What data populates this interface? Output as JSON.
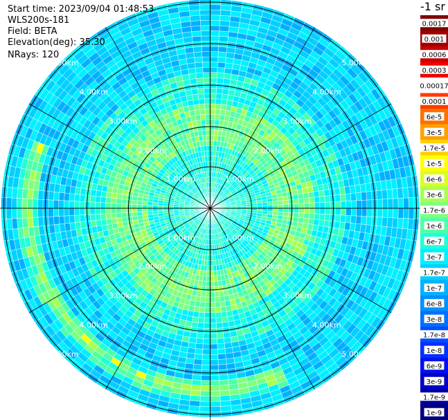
{
  "header": {
    "start_time": "Start time: 2023/09/04 01:48:53",
    "device": "WLS200s-181",
    "field": "Field: BETA",
    "elevation": "Elevation(deg): 35.30",
    "nrays": "NRays: 120"
  },
  "ppi": {
    "nrays": 120,
    "range_labels": [
      "1.00km",
      "2.00km",
      "3.00km",
      "4.00km",
      "5.00km"
    ]
  },
  "colorbar": {
    "title": "-1 sr",
    "levels": [
      {
        "label": "0.0017",
        "color": "#7f0000"
      },
      {
        "label": "0.001",
        "color": "#a00000"
      },
      {
        "label": "0.0006",
        "color": "#c80000"
      },
      {
        "label": "0.0003",
        "color": "#ee0000"
      },
      {
        "label": "0.00017",
        "color": "#ffffff"
      },
      {
        "label": "0.0001",
        "color": "#ff3a00"
      },
      {
        "label": "6e-5",
        "color": "#ff7000"
      },
      {
        "label": "3e-5",
        "color": "#ffa000"
      },
      {
        "label": "1.7e-5",
        "color": "#ffd000"
      },
      {
        "label": "1e-5",
        "color": "#ffff00"
      },
      {
        "label": "6e-6",
        "color": "#d8ff20"
      },
      {
        "label": "3e-6",
        "color": "#a8ff50"
      },
      {
        "label": "1.7e-6",
        "color": "#80ff80"
      },
      {
        "label": "1e-6",
        "color": "#50ffa8"
      },
      {
        "label": "6e-7",
        "color": "#20ffd8"
      },
      {
        "label": "3e-7",
        "color": "#00f0ff"
      },
      {
        "label": "1.7e-7",
        "color": "#00d0ff"
      },
      {
        "label": "1e-7",
        "color": "#00b0ff"
      },
      {
        "label": "6e-8",
        "color": "#0090ff"
      },
      {
        "label": "3e-8",
        "color": "#0070ff"
      },
      {
        "label": "1.7e-8",
        "color": "#0050ff"
      },
      {
        "label": "1e-8",
        "color": "#0030ff"
      },
      {
        "label": "6e-9",
        "color": "#0010f0"
      },
      {
        "label": "3e-9",
        "color": "#0000c8"
      },
      {
        "label": "1.7e-9",
        "color": "#0000a0"
      },
      {
        "label": "1e-9",
        "color": "#000080"
      }
    ]
  }
}
